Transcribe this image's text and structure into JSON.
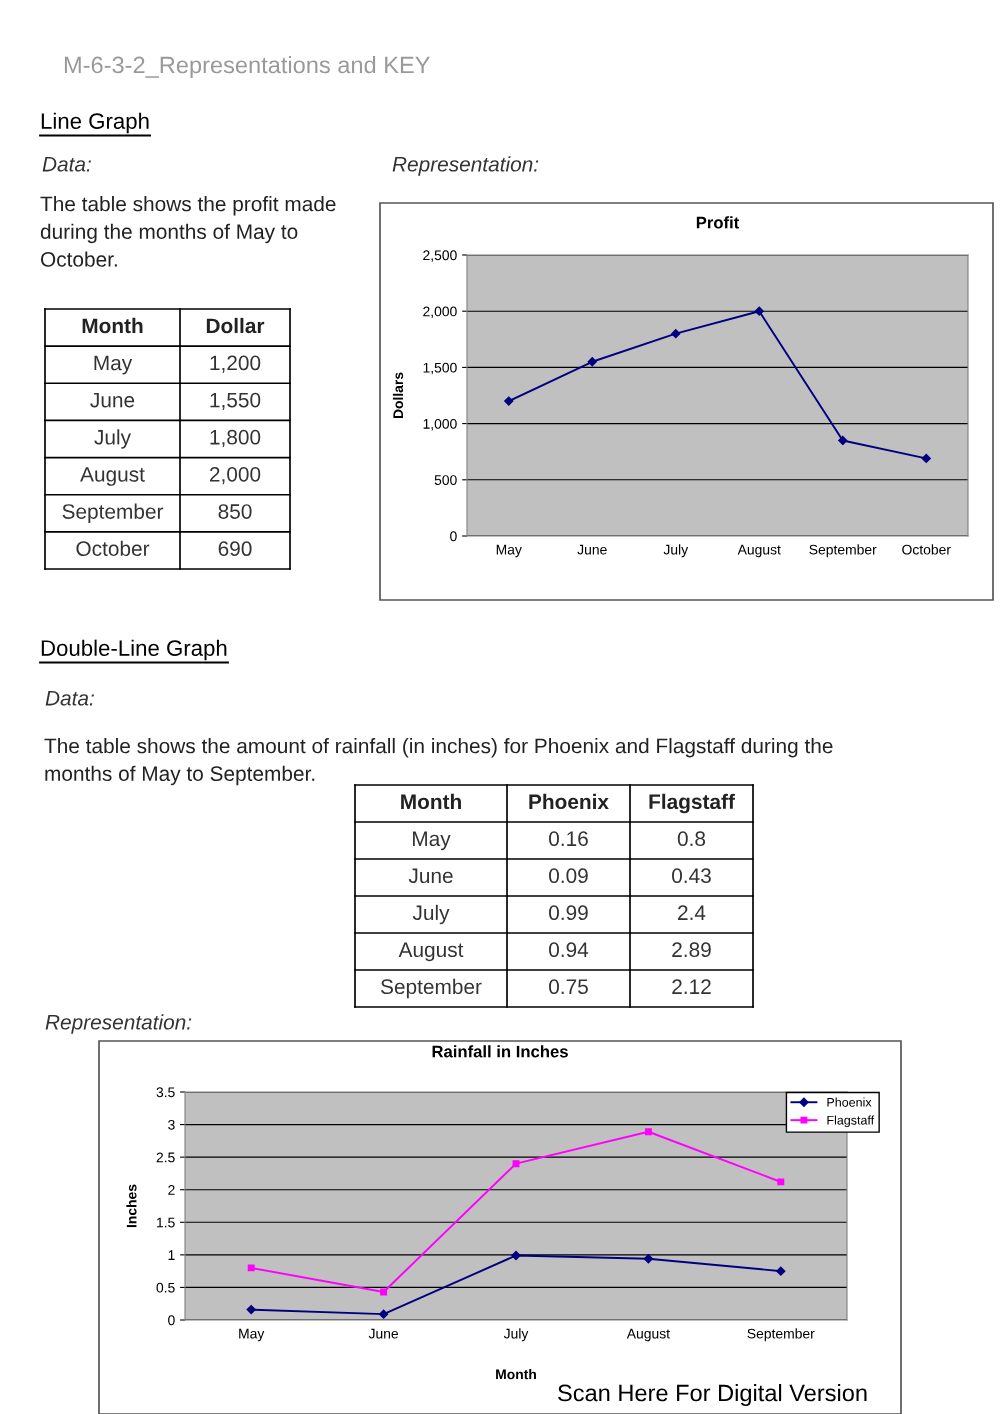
{
  "chart_data": [
    {
      "type": "line",
      "title": "Profit",
      "ylabel": "Dollars",
      "categories": [
        "May",
        "June",
        "July",
        "August",
        "September",
        "October"
      ],
      "values": [
        1200,
        1550,
        1800,
        2000,
        850,
        690
      ],
      "color": "#000080",
      "ylim": [
        0,
        2500
      ],
      "yticks": [
        0,
        {
          "value": 500,
          "label": "500"
        },
        {
          "value": 1000,
          "label": "1,000"
        },
        {
          "value": 1500,
          "label": "1,500"
        },
        {
          "value": 2000,
          "label": "2,000"
        },
        {
          "value": 2500,
          "label": "2,500"
        }
      ],
      "grid": "y",
      "marker": "diamond",
      "line_style": "solid",
      "legend": false,
      "annotations": [
        "M-6-3-2_Representations and KEY",
        "Line Graph",
        "Data:",
        "Representation:",
        "The table shows the profit made\nduring the months of May to\nOctober.",
        "Month",
        "Dollar",
        "1,200",
        "1,550",
        "1,800",
        "2,000",
        "850",
        "690"
      ]
    },
    {
      "type": "line",
      "title": "Rainfall in Inches",
      "xlabel": "Month",
      "ylabel": "Inches",
      "categories": [
        "May",
        "June",
        "July",
        "August",
        "September"
      ],
      "series": [
        {
          "name": "Phoenix",
          "color": "#000080",
          "marker": "diamond",
          "values": [
            0.16,
            0.09,
            0.99,
            0.94,
            0.75
          ]
        },
        {
          "name": "Flagstaff",
          "color": "#ff00ff",
          "marker": "square",
          "values": [
            0.8,
            0.43,
            2.4,
            2.89,
            2.12
          ]
        }
      ],
      "ylim": [
        0,
        3.5
      ],
      "yticks": [
        0,
        0.5,
        1,
        1.5,
        2,
        2.5,
        3,
        3.5
      ],
      "grid": "y",
      "line_style": "solid",
      "legend": "top right",
      "annotations": [
        "Double-Line Graph",
        "Data:",
        "The table shows the amount of rainfall (in inches) for Phoenix and Flagstaff during the\nmonths of May to September.",
        "Representation:",
        "Month",
        "Scan Here For Digital Version",
        "0.16",
        "0.8",
        "0.09",
        "0.43",
        "0.99",
        "2.4",
        "0.94",
        "2.89",
        "0.75",
        "2.12"
      ]
    }
  ]
}
